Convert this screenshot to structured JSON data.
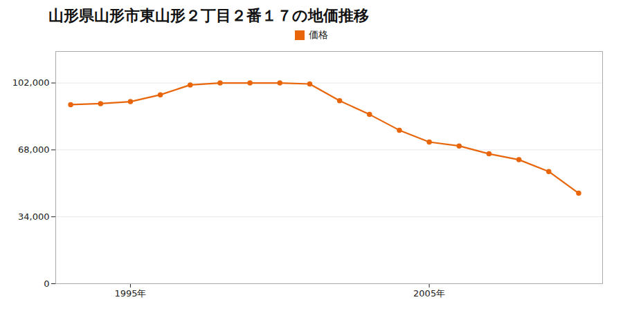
{
  "chart_data": {
    "type": "line",
    "title": "山形県山形市東山形２丁目２番１７の地価推移",
    "x": [
      1993,
      1994,
      1995,
      1996,
      1997,
      1998,
      1999,
      2000,
      2001,
      2002,
      2003,
      2004,
      2005,
      2006,
      2007,
      2008,
      2009,
      2010
    ],
    "series": [
      {
        "name": "価格",
        "color": "#e8650a",
        "marker": "circle",
        "values": [
          91000,
          91500,
          92500,
          96000,
          101000,
          102000,
          102000,
          102000,
          101500,
          93000,
          86000,
          78000,
          72000,
          70000,
          66000,
          63000,
          57000,
          46000
        ]
      }
    ],
    "xlim": [
      1992.5,
      2010.8
    ],
    "xticks": [
      {
        "value": 1995,
        "label": "1995年"
      },
      {
        "value": 2005,
        "label": "2005年"
      }
    ],
    "ylim": [
      0,
      118000
    ],
    "yticks": [
      0,
      {
        "value": 34000,
        "label": "34,000"
      },
      {
        "value": 68000,
        "label": "68,000"
      },
      {
        "value": 102000,
        "label": "102,000"
      }
    ],
    "grid": true,
    "legend": "top"
  }
}
